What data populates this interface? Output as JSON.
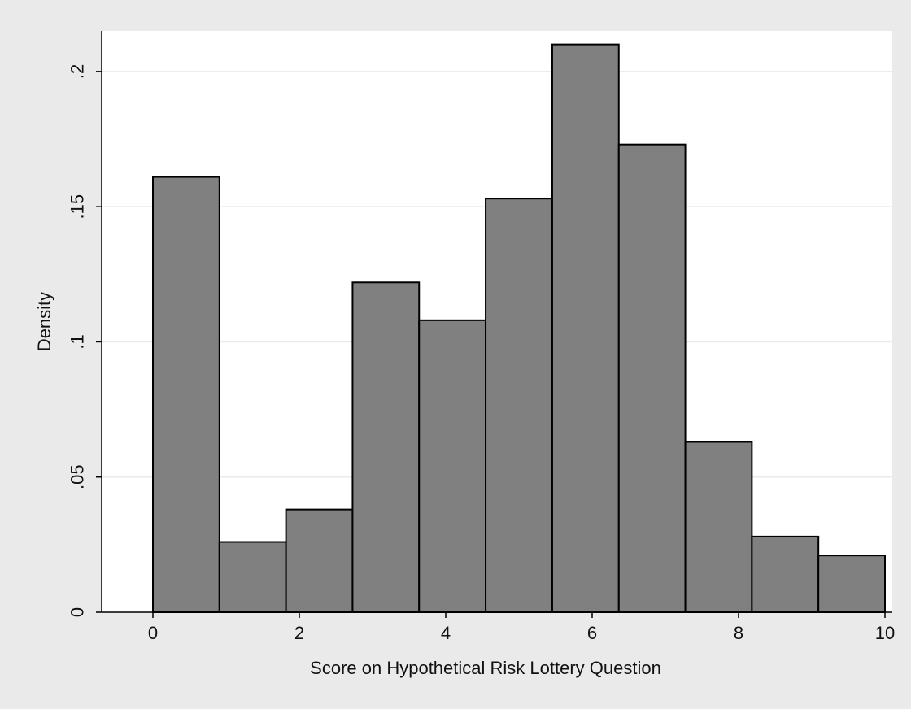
{
  "chart_data": {
    "type": "bar",
    "title": "",
    "xlabel": "Score on Hypothetical Risk Lottery Question",
    "ylabel": "Density",
    "xlim": [
      -0.7,
      10.1
    ],
    "ylim": [
      0,
      0.215
    ],
    "bins": [
      {
        "start": 0.0,
        "end": 0.909,
        "density": 0.161
      },
      {
        "start": 0.909,
        "end": 1.818,
        "density": 0.026
      },
      {
        "start": 1.818,
        "end": 2.727,
        "density": 0.038
      },
      {
        "start": 2.727,
        "end": 3.636,
        "density": 0.122
      },
      {
        "start": 3.636,
        "end": 4.545,
        "density": 0.108
      },
      {
        "start": 4.545,
        "end": 5.455,
        "density": 0.153
      },
      {
        "start": 5.455,
        "end": 6.364,
        "density": 0.21
      },
      {
        "start": 6.364,
        "end": 7.273,
        "density": 0.173
      },
      {
        "start": 7.273,
        "end": 8.182,
        "density": 0.063
      },
      {
        "start": 8.182,
        "end": 9.091,
        "density": 0.028
      },
      {
        "start": 9.091,
        "end": 10.0,
        "density": 0.021
      }
    ],
    "x_ticks": [
      {
        "value": 0,
        "label": "0"
      },
      {
        "value": 2,
        "label": "2"
      },
      {
        "value": 4,
        "label": "4"
      },
      {
        "value": 6,
        "label": "6"
      },
      {
        "value": 8,
        "label": "8"
      },
      {
        "value": 10,
        "label": "10"
      }
    ],
    "y_ticks": [
      {
        "value": 0,
        "label": "0"
      },
      {
        "value": 0.05,
        "label": ".05"
      },
      {
        "value": 0.1,
        "label": ".1"
      },
      {
        "value": 0.15,
        "label": ".15"
      },
      {
        "value": 0.2,
        "label": ".2"
      }
    ],
    "grid": "horizontal",
    "legend": "none",
    "colors": {
      "background": "#eaeaea",
      "plot_background": "#ffffff",
      "bar_fill": "#808080",
      "bar_stroke": "#000000",
      "grid": "#eaeaea",
      "axis": "#000000"
    }
  }
}
